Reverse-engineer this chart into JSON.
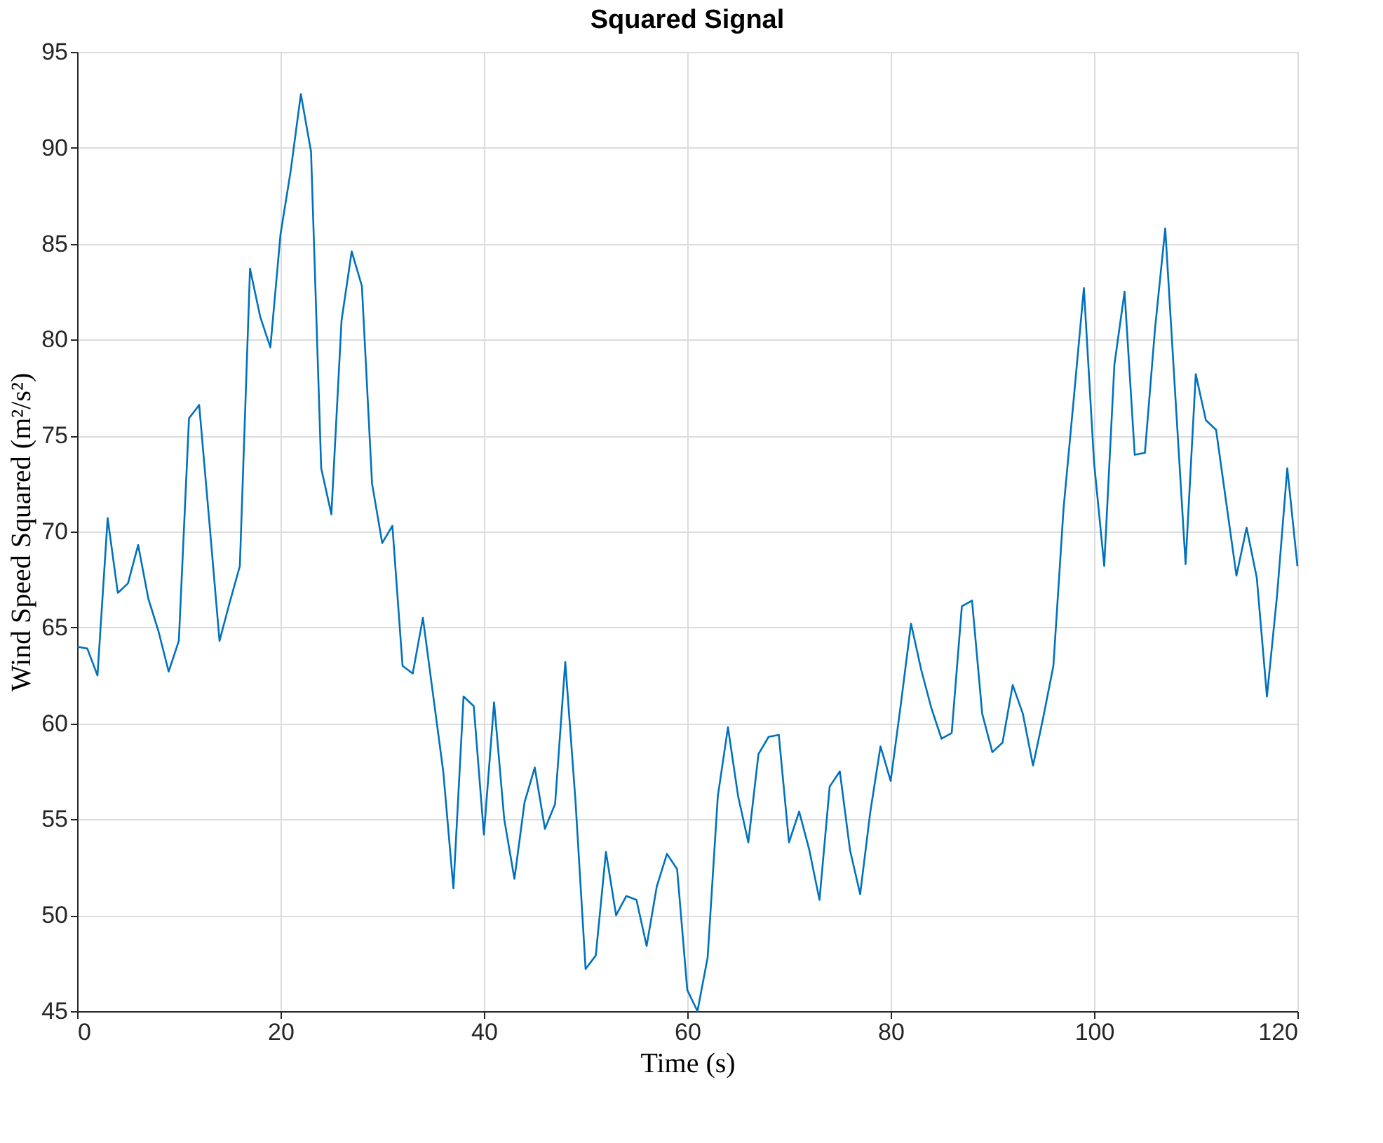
{
  "chart_data": {
    "type": "line",
    "title": "Squared Signal",
    "xlabel": "Time (s)",
    "ylabel": "Wind Speed Squared (m²/s²)",
    "x": [
      0,
      1,
      2,
      3,
      4,
      5,
      6,
      7,
      8,
      9,
      10,
      11,
      12,
      13,
      14,
      15,
      16,
      17,
      18,
      19,
      20,
      21,
      22,
      23,
      24,
      25,
      26,
      27,
      28,
      29,
      30,
      31,
      32,
      33,
      34,
      35,
      36,
      37,
      38,
      39,
      40,
      41,
      42,
      43,
      44,
      45,
      46,
      47,
      48,
      49,
      50,
      51,
      52,
      53,
      54,
      55,
      56,
      57,
      58,
      59,
      60,
      61,
      62,
      63,
      64,
      65,
      66,
      67,
      68,
      69,
      70,
      71,
      72,
      73,
      74,
      75,
      76,
      77,
      78,
      79,
      80,
      81,
      82,
      83,
      84,
      85,
      86,
      87,
      88,
      89,
      90,
      91,
      92,
      93,
      94,
      95,
      96,
      97,
      98,
      99,
      100,
      101,
      102,
      103,
      104,
      105,
      106,
      107,
      108,
      109,
      110,
      111,
      112,
      113,
      114,
      115,
      116,
      117,
      118,
      119,
      120
    ],
    "series": [
      {
        "color": "#0072bd",
        "values": [
          64,
          63.9,
          62.5,
          70.7,
          66.8,
          67.3,
          69.3,
          66.5,
          64.8,
          62.7,
          64.3,
          75.9,
          76.6,
          70.5,
          64.3,
          66.3,
          68.2,
          83.7,
          81.2,
          79.6,
          85.5,
          88.8,
          92.8,
          89.8,
          73.3,
          70.9,
          81,
          84.6,
          82.8,
          72.5,
          69.4,
          70.3,
          63,
          62.6,
          65.5,
          61.5,
          57.5,
          51.4,
          61.4,
          60.9,
          54.2,
          61.1,
          55,
          51.9,
          55.9,
          57.7,
          54.5,
          55.8,
          63.2,
          56,
          47.2,
          47.9,
          53.3,
          50,
          51,
          50.8,
          48.4,
          51.5,
          53.2,
          52.4,
          46.1,
          45,
          47.8,
          56.2,
          59.8,
          56.2,
          53.8,
          58.4,
          59.3,
          59.4,
          53.8,
          55.4,
          53.4,
          50.8,
          56.7,
          57.5,
          53.4,
          51.1,
          55.4,
          58.8,
          57,
          61,
          65.2,
          62.8,
          60.8,
          59.2,
          59.5,
          66.1,
          66.4,
          60.5,
          58.5,
          59,
          62,
          60.5,
          57.8,
          60.3,
          63,
          71.2,
          76.9,
          82.7,
          73.6,
          68.2,
          78.7,
          82.5,
          74,
          74.1,
          80.6,
          85.8,
          77,
          68.3,
          78.2,
          75.8,
          75.3,
          71.5,
          67.7,
          70.2,
          67.6,
          61.4,
          66.7,
          73.3,
          68.2
        ]
      }
    ],
    "xlim": [
      0,
      120
    ],
    "xticks": [
      0,
      20,
      40,
      60,
      80,
      100,
      120
    ],
    "ylim": [
      45,
      95
    ],
    "yticks": [
      45,
      50,
      55,
      60,
      65,
      70,
      75,
      80,
      85,
      90,
      95
    ],
    "grid": true,
    "legend": false,
    "marker": "none",
    "line_style": "solid"
  }
}
